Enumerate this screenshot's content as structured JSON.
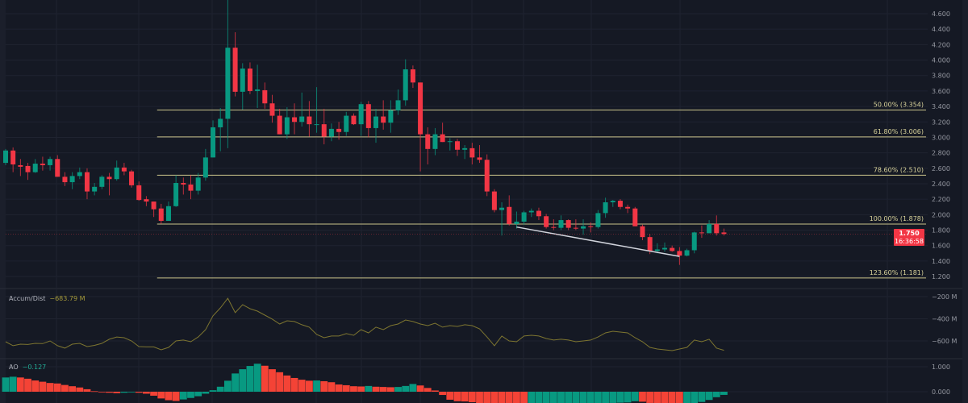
{
  "colors": {
    "up": "#089981",
    "down": "#f23645",
    "ao_up": "#089981",
    "ao_down": "#f44336",
    "fib": "#c9c38a",
    "fib_text": "#d8d29a",
    "ad_line": "#7d7530",
    "trend": "#d1d4dc",
    "background": "#151924",
    "grid": "#1f2330",
    "axis_text": "#9598a1"
  },
  "chart_data": [
    {
      "type": "candlestick",
      "title": "",
      "ylim": [
        1.1,
        4.78
      ],
      "y_ticks": [
        "4.600",
        "4.400",
        "4.200",
        "4.000",
        "3.800",
        "3.600",
        "3.400",
        "3.200",
        "3.000",
        "2.800",
        "2.600",
        "2.400",
        "2.200",
        "2.000",
        "1.800",
        "1.600",
        "1.400",
        "1.200"
      ],
      "candles": [
        [
          2.67,
          2.85,
          2.64,
          2.83
        ],
        [
          2.83,
          2.87,
          2.55,
          2.65
        ],
        [
          2.64,
          2.72,
          2.5,
          2.62
        ],
        [
          2.63,
          2.67,
          2.45,
          2.55
        ],
        [
          2.55,
          2.72,
          2.54,
          2.66
        ],
        [
          2.66,
          2.75,
          2.57,
          2.64
        ],
        [
          2.64,
          2.75,
          2.57,
          2.72
        ],
        [
          2.72,
          2.77,
          2.49,
          2.49
        ],
        [
          2.49,
          2.55,
          2.37,
          2.42
        ],
        [
          2.42,
          2.55,
          2.33,
          2.5
        ],
        [
          2.5,
          2.61,
          2.46,
          2.55
        ],
        [
          2.55,
          2.6,
          2.2,
          2.3
        ],
        [
          2.3,
          2.41,
          2.25,
          2.36
        ],
        [
          2.36,
          2.51,
          2.33,
          2.49
        ],
        [
          2.49,
          2.54,
          2.25,
          2.46
        ],
        [
          2.46,
          2.7,
          2.44,
          2.61
        ],
        [
          2.61,
          2.67,
          2.51,
          2.56
        ],
        [
          2.56,
          2.58,
          2.35,
          2.38
        ],
        [
          2.38,
          2.43,
          2.18,
          2.19
        ],
        [
          2.2,
          2.24,
          2.11,
          2.17
        ],
        [
          2.17,
          2.17,
          1.97,
          2.07
        ],
        [
          2.08,
          2.14,
          1.88,
          1.92
        ],
        [
          1.92,
          2.17,
          1.92,
          2.11
        ],
        [
          2.11,
          2.51,
          2.1,
          2.41
        ],
        [
          2.41,
          2.48,
          2.26,
          2.39
        ],
        [
          2.39,
          2.51,
          2.2,
          2.31
        ],
        [
          2.31,
          2.54,
          2.26,
          2.48
        ],
        [
          2.48,
          2.85,
          2.44,
          2.74
        ],
        [
          2.74,
          3.22,
          2.74,
          3.13
        ],
        [
          3.13,
          3.38,
          2.82,
          3.24
        ],
        [
          3.24,
          4.78,
          2.86,
          4.16
        ],
        [
          4.16,
          4.36,
          3.53,
          3.59
        ],
        [
          3.59,
          3.96,
          3.36,
          3.89
        ],
        [
          3.89,
          3.97,
          3.56,
          3.6
        ],
        [
          3.6,
          3.94,
          3.38,
          3.62
        ],
        [
          3.61,
          3.71,
          3.37,
          3.44
        ],
        [
          3.44,
          3.55,
          3.19,
          3.28
        ],
        [
          3.28,
          3.37,
          3.04,
          3.04
        ],
        [
          3.04,
          3.39,
          2.98,
          3.26
        ],
        [
          3.26,
          3.44,
          3.04,
          3.2
        ],
        [
          3.2,
          3.58,
          3.14,
          3.27
        ],
        [
          3.27,
          3.47,
          3.01,
          3.17
        ],
        [
          3.16,
          3.65,
          3.06,
          3.17
        ],
        [
          3.17,
          3.37,
          2.91,
          3.01
        ],
        [
          3.01,
          3.18,
          2.95,
          3.11
        ],
        [
          3.11,
          3.2,
          2.97,
          3.07
        ],
        [
          3.07,
          3.33,
          3.02,
          3.28
        ],
        [
          3.28,
          3.31,
          3.16,
          3.17
        ],
        [
          3.17,
          3.46,
          3.02,
          3.43
        ],
        [
          3.43,
          3.47,
          3.0,
          3.12
        ],
        [
          3.12,
          3.37,
          2.93,
          3.27
        ],
        [
          3.27,
          3.48,
          3.1,
          3.19
        ],
        [
          3.19,
          3.48,
          3.06,
          3.35
        ],
        [
          3.35,
          3.62,
          3.29,
          3.48
        ],
        [
          3.48,
          4.01,
          3.41,
          3.88
        ],
        [
          3.88,
          3.93,
          3.64,
          3.71
        ],
        [
          3.71,
          3.71,
          2.56,
          3.04
        ],
        [
          3.04,
          3.13,
          2.65,
          2.85
        ],
        [
          2.85,
          3.12,
          2.77,
          3.04
        ],
        [
          3.04,
          3.19,
          2.94,
          2.94
        ],
        [
          2.94,
          2.99,
          2.83,
          2.95
        ],
        [
          2.95,
          2.98,
          2.76,
          2.84
        ],
        [
          2.84,
          2.9,
          2.72,
          2.86
        ],
        [
          2.86,
          2.93,
          2.65,
          2.74
        ],
        [
          2.74,
          2.9,
          2.67,
          2.71
        ],
        [
          2.71,
          2.78,
          2.24,
          2.3
        ],
        [
          2.3,
          2.33,
          2.03,
          2.06
        ],
        [
          2.06,
          2.16,
          1.73,
          2.09
        ],
        [
          2.1,
          2.25,
          1.86,
          1.88
        ],
        [
          1.88,
          2.04,
          1.82,
          1.91
        ],
        [
          1.91,
          2.05,
          1.87,
          2.03
        ],
        [
          2.03,
          2.08,
          1.97,
          2.05
        ],
        [
          2.05,
          2.09,
          1.93,
          1.98
        ],
        [
          1.98,
          2.01,
          1.82,
          1.84
        ],
        [
          1.84,
          1.94,
          1.8,
          1.83
        ],
        [
          1.83,
          1.99,
          1.8,
          1.93
        ],
        [
          1.93,
          1.94,
          1.8,
          1.83
        ],
        [
          1.83,
          1.94,
          1.8,
          1.82
        ],
        [
          1.82,
          1.94,
          1.74,
          1.85
        ],
        [
          1.85,
          1.9,
          1.77,
          1.84
        ],
        [
          1.84,
          2.06,
          1.82,
          2.02
        ],
        [
          2.02,
          2.22,
          1.96,
          2.16
        ],
        [
          2.16,
          2.19,
          2.1,
          2.18
        ],
        [
          2.18,
          2.2,
          2.07,
          2.1
        ],
        [
          2.1,
          2.13,
          2.02,
          2.08
        ],
        [
          2.08,
          2.1,
          1.85,
          1.85
        ],
        [
          1.85,
          1.87,
          1.67,
          1.71
        ],
        [
          1.71,
          1.75,
          1.49,
          1.53
        ],
        [
          1.53,
          1.63,
          1.5,
          1.55
        ],
        [
          1.55,
          1.64,
          1.52,
          1.57
        ],
        [
          1.57,
          1.6,
          1.52,
          1.53
        ],
        [
          1.53,
          1.58,
          1.35,
          1.47
        ],
        [
          1.47,
          1.56,
          1.46,
          1.54
        ],
        [
          1.54,
          1.78,
          1.5,
          1.77
        ],
        [
          1.77,
          1.86,
          1.7,
          1.76
        ],
        [
          1.76,
          1.93,
          1.76,
          1.88
        ],
        [
          1.88,
          1.99,
          1.73,
          1.76
        ],
        [
          1.77,
          1.82,
          1.73,
          1.75
        ]
      ],
      "fib_levels": [
        {
          "label": "50.00% (3.354)",
          "price": 3.354
        },
        {
          "label": "61.80% (3.006)",
          "price": 3.006
        },
        {
          "label": "78.60% (2.510)",
          "price": 2.51
        },
        {
          "label": "100.00% (1.878)",
          "price": 1.878
        },
        {
          "label": "123.60% (1.181)",
          "price": 1.181
        }
      ],
      "fib_start_candle": 21,
      "trend_line": {
        "from": {
          "candle": 69,
          "price": 1.84
        },
        "to": {
          "candle": 91,
          "price": 1.46
        }
      },
      "last_price": {
        "value": "1.750",
        "countdown": "16:36:58"
      }
    },
    {
      "type": "line",
      "title": "Accum/Dist",
      "last_value": "−683.79 M",
      "unit": "M",
      "y_ticks": [
        "−200 M",
        "−400 M",
        "−600 M"
      ],
      "tick_values": [
        -200,
        -400,
        -600
      ],
      "values": [
        -607,
        -643,
        -629,
        -632,
        -622,
        -624,
        -600,
        -643,
        -665,
        -629,
        -622,
        -651,
        -640,
        -622,
        -585,
        -564,
        -571,
        -600,
        -651,
        -654,
        -654,
        -680,
        -658,
        -600,
        -592,
        -607,
        -564,
        -498,
        -374,
        -302,
        -215,
        -345,
        -273,
        -309,
        -331,
        -367,
        -403,
        -447,
        -418,
        -425,
        -454,
        -476,
        -542,
        -571,
        -556,
        -556,
        -534,
        -549,
        -498,
        -527,
        -476,
        -498,
        -462,
        -447,
        -411,
        -425,
        -447,
        -462,
        -440,
        -476,
        -462,
        -469,
        -454,
        -462,
        -491,
        -564,
        -643,
        -556,
        -600,
        -607,
        -556,
        -549,
        -556,
        -578,
        -592,
        -585,
        -592,
        -607,
        -600,
        -592,
        -564,
        -527,
        -513,
        -520,
        -527,
        -571,
        -607,
        -658,
        -673,
        -680,
        -687,
        -673,
        -658,
        -592,
        -607,
        -585,
        -665,
        -684
      ]
    },
    {
      "type": "bar",
      "title": "AO",
      "last_value": "−0.127",
      "y_ticks": [
        "1.000",
        "0.000"
      ],
      "tick_values": [
        1,
        0
      ],
      "values": [
        0.57,
        0.6,
        0.57,
        0.52,
        0.45,
        0.4,
        0.35,
        0.33,
        0.27,
        0.22,
        0.17,
        0.1,
        0.02,
        -0.02,
        -0.04,
        -0.06,
        -0.04,
        -0.02,
        -0.04,
        -0.08,
        -0.16,
        -0.27,
        -0.34,
        -0.37,
        -0.31,
        -0.25,
        -0.18,
        -0.08,
        0.06,
        0.2,
        0.44,
        0.73,
        0.9,
        1.03,
        1.12,
        1.04,
        0.9,
        0.78,
        0.65,
        0.55,
        0.48,
        0.44,
        0.45,
        0.42,
        0.38,
        0.29,
        0.26,
        0.22,
        0.21,
        0.23,
        0.2,
        0.19,
        0.18,
        0.19,
        0.23,
        0.31,
        0.25,
        0.15,
        0.05,
        -0.13,
        -0.32,
        -0.38,
        -0.39,
        -0.42,
        -0.46,
        -0.5,
        -0.55,
        -0.58,
        -0.62,
        -0.65,
        -0.66,
        -0.63,
        -0.6,
        -0.57,
        -0.55,
        -0.53,
        -0.51,
        -0.5,
        -0.49,
        -0.48,
        -0.47,
        -0.46,
        -0.45,
        -0.44,
        -0.43,
        -0.38,
        -0.4,
        -0.45,
        -0.5,
        -0.53,
        -0.56,
        -0.58,
        -0.52,
        -0.47,
        -0.41,
        -0.33,
        -0.22,
        -0.127
      ]
    }
  ]
}
